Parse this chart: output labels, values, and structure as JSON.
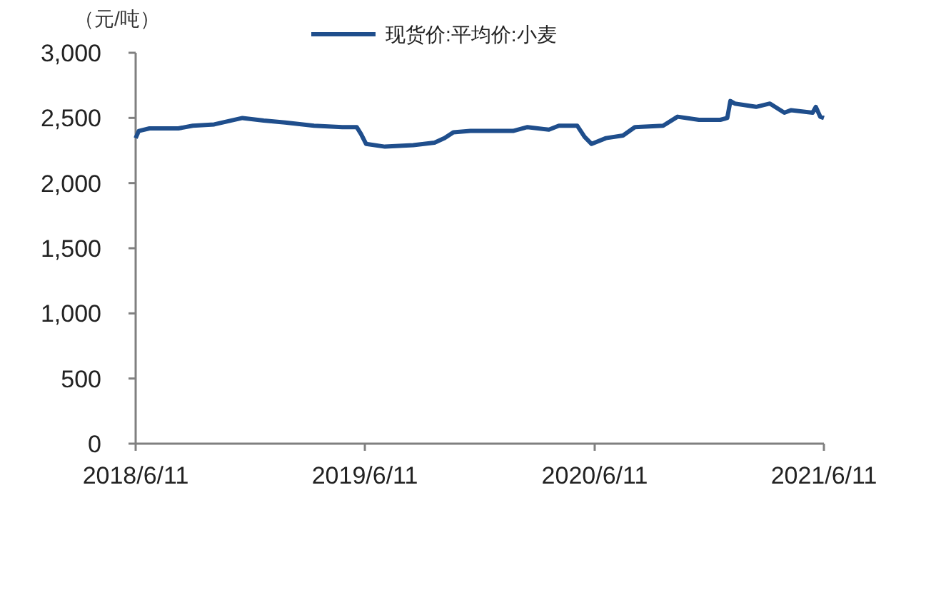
{
  "chart_data": {
    "type": "line",
    "ylabel": "（元/吨）",
    "x": [
      "2018-06-11",
      "2018-06-16",
      "2018-07-03",
      "2018-08-18",
      "2018-09-10",
      "2018-10-14",
      "2018-11-28",
      "2019-01-01",
      "2019-02-04",
      "2019-03-22",
      "2019-05-06",
      "2019-05-29",
      "2019-06-05",
      "2019-06-13",
      "2019-07-13",
      "2019-08-27",
      "2019-09-30",
      "2019-10-16",
      "2019-10-30",
      "2019-11-26",
      "2020-02-02",
      "2020-02-25",
      "2020-03-30",
      "2020-04-15",
      "2020-05-14",
      "2020-05-26",
      "2020-06-06",
      "2020-06-29",
      "2020-07-26",
      "2020-08-14",
      "2020-09-28",
      "2020-10-21",
      "2020-11-24",
      "2020-12-28",
      "2021-01-08",
      "2021-01-13",
      "2021-01-20",
      "2021-02-23",
      "2021-03-17",
      "2021-04-09",
      "2021-04-20",
      "2021-05-24",
      "2021-05-29",
      "2021-06-05",
      "2021-06-11"
    ],
    "series": [
      {
        "name": "现货价:平均价:小麦",
        "color": "#1f4e8c",
        "values": [
          2345,
          2400,
          2420,
          2420,
          2440,
          2450,
          2500,
          2480,
          2465,
          2440,
          2430,
          2430,
          2375,
          2300,
          2280,
          2290,
          2310,
          2345,
          2390,
          2400,
          2400,
          2430,
          2410,
          2440,
          2440,
          2355,
          2300,
          2345,
          2365,
          2430,
          2440,
          2510,
          2485,
          2485,
          2500,
          2630,
          2610,
          2585,
          2610,
          2540,
          2560,
          2540,
          2585,
          2510,
          2500
        ]
      }
    ],
    "xlim": [
      "2018-06-11",
      "2021-06-11"
    ],
    "xticks": [
      {
        "value": "2018-06-11",
        "label": "2018/6/11"
      },
      {
        "value": "2019-06-11",
        "label": "2019/6/11"
      },
      {
        "value": "2020-06-11",
        "label": "2020/6/11"
      },
      {
        "value": "2021-06-11",
        "label": "2021/6/11"
      }
    ],
    "ylim": [
      0,
      3000
    ],
    "yticks": [
      0,
      {
        "value": 500,
        "label": "500"
      },
      {
        "value": 1000,
        "label": "1,000"
      },
      {
        "value": 1500,
        "label": "1,500"
      },
      {
        "value": 2000,
        "label": "2,000"
      },
      {
        "value": 2500,
        "label": "2,500"
      },
      {
        "value": 3000,
        "label": "3,000"
      }
    ],
    "legend": "top",
    "grid": false,
    "marker": "none",
    "line_style": "solid"
  }
}
